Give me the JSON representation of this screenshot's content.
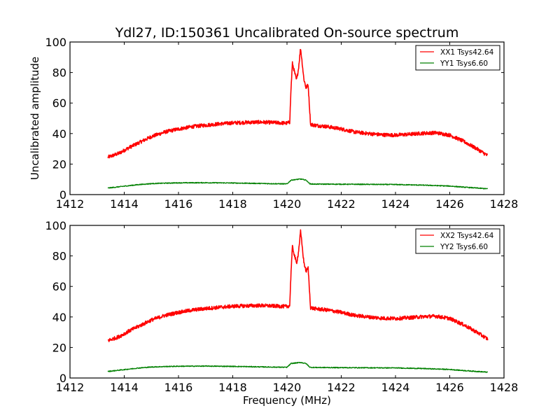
{
  "figure": {
    "title": "Ydl27, ID:150361 Uncalibrated On-source spectrum"
  },
  "chart_data": [
    {
      "type": "line",
      "title": "Ydl27, ID:150361 Uncalibrated On-source spectrum",
      "xlabel": "",
      "ylabel": "Uncalibrated amplitude",
      "xlim": [
        1412,
        1428
      ],
      "ylim": [
        0,
        100
      ],
      "xticks": [
        "1412",
        "1414",
        "1416",
        "1418",
        "1420",
        "1422",
        "1424",
        "1426",
        "1428"
      ],
      "yticks": [
        "0",
        "20",
        "40",
        "60",
        "80",
        "100"
      ],
      "grid": false,
      "legend_position": "top-right",
      "x_range": [
        1413.4,
        1427.4
      ],
      "series": [
        {
          "name": "XX1 Tsys42.64",
          "color": "#ff0000",
          "noise": 1.2,
          "points": [
            [
              1413.4,
              24.5
            ],
            [
              1413.8,
              27
            ],
            [
              1414.2,
              31
            ],
            [
              1414.6,
              34.5
            ],
            [
              1415.0,
              38
            ],
            [
              1415.5,
              41
            ],
            [
              1416.0,
              43
            ],
            [
              1416.5,
              44.5
            ],
            [
              1417.0,
              45.5
            ],
            [
              1417.5,
              46.3
            ],
            [
              1418.0,
              47
            ],
            [
              1418.5,
              47.3
            ],
            [
              1419.0,
              47.5
            ],
            [
              1419.5,
              47.2
            ],
            [
              1420.0,
              46.8
            ],
            [
              1420.1,
              47.5
            ],
            [
              1420.15,
              70
            ],
            [
              1420.2,
              86
            ],
            [
              1420.28,
              80
            ],
            [
              1420.35,
              75
            ],
            [
              1420.42,
              82
            ],
            [
              1420.5,
              96
            ],
            [
              1420.55,
              88
            ],
            [
              1420.62,
              76
            ],
            [
              1420.7,
              70
            ],
            [
              1420.78,
              72
            ],
            [
              1420.82,
              60
            ],
            [
              1420.87,
              46
            ],
            [
              1421.0,
              45.5
            ],
            [
              1421.5,
              44.5
            ],
            [
              1422.0,
              43
            ],
            [
              1422.5,
              41
            ],
            [
              1423.0,
              40
            ],
            [
              1423.5,
              39.2
            ],
            [
              1424.0,
              39
            ],
            [
              1424.5,
              39.5
            ],
            [
              1425.0,
              40.2
            ],
            [
              1425.5,
              40.5
            ],
            [
              1426.0,
              39
            ],
            [
              1426.5,
              35
            ],
            [
              1427.0,
              30
            ],
            [
              1427.4,
              25.5
            ]
          ]
        },
        {
          "name": "YY1 Tsys6.60",
          "color": "#008000",
          "noise": 0.3,
          "points": [
            [
              1413.4,
              4.3
            ],
            [
              1414.0,
              5.5
            ],
            [
              1414.5,
              6.5
            ],
            [
              1415.0,
              7.2
            ],
            [
              1415.5,
              7.5
            ],
            [
              1416.0,
              7.7
            ],
            [
              1417.0,
              7.8
            ],
            [
              1418.0,
              7.6
            ],
            [
              1419.0,
              7.3
            ],
            [
              1420.0,
              7.0
            ],
            [
              1420.15,
              9.5
            ],
            [
              1420.3,
              9.8
            ],
            [
              1420.5,
              10.2
            ],
            [
              1420.7,
              9.5
            ],
            [
              1420.85,
              7.0
            ],
            [
              1421.0,
              6.9
            ],
            [
              1422.0,
              6.8
            ],
            [
              1423.0,
              6.7
            ],
            [
              1424.0,
              6.6
            ],
            [
              1425.0,
              6.2
            ],
            [
              1426.0,
              5.6
            ],
            [
              1426.5,
              4.9
            ],
            [
              1427.0,
              4.3
            ],
            [
              1427.4,
              3.8
            ]
          ]
        }
      ]
    },
    {
      "type": "line",
      "title": "",
      "xlabel": "Frequency (MHz)",
      "ylabel": "",
      "xlim": [
        1412,
        1428
      ],
      "ylim": [
        0,
        100
      ],
      "xticks": [
        "1412",
        "1414",
        "1416",
        "1418",
        "1420",
        "1422",
        "1424",
        "1426",
        "1428"
      ],
      "yticks": [
        "0",
        "20",
        "40",
        "60",
        "80",
        "100"
      ],
      "grid": false,
      "legend_position": "top-right",
      "x_range": [
        1413.4,
        1427.4
      ],
      "series": [
        {
          "name": "XX2 Tsys42.64",
          "color": "#ff0000",
          "noise": 1.2,
          "points": [
            [
              1413.4,
              24.5
            ],
            [
              1413.8,
              27
            ],
            [
              1414.2,
              31
            ],
            [
              1414.6,
              34.5
            ],
            [
              1415.0,
              38
            ],
            [
              1415.5,
              41
            ],
            [
              1416.0,
              43
            ],
            [
              1416.5,
              44.5
            ],
            [
              1417.0,
              45.5
            ],
            [
              1417.5,
              46.3
            ],
            [
              1418.0,
              47
            ],
            [
              1418.5,
              47.3
            ],
            [
              1419.0,
              47.5
            ],
            [
              1419.5,
              47.2
            ],
            [
              1420.0,
              46.8
            ],
            [
              1420.1,
              47.5
            ],
            [
              1420.15,
              70
            ],
            [
              1420.2,
              86
            ],
            [
              1420.28,
              80
            ],
            [
              1420.35,
              75
            ],
            [
              1420.42,
              82
            ],
            [
              1420.5,
              96
            ],
            [
              1420.55,
              88
            ],
            [
              1420.62,
              76
            ],
            [
              1420.7,
              70
            ],
            [
              1420.78,
              72
            ],
            [
              1420.82,
              60
            ],
            [
              1420.87,
              46
            ],
            [
              1421.0,
              45.5
            ],
            [
              1421.5,
              44.5
            ],
            [
              1422.0,
              43
            ],
            [
              1422.5,
              41
            ],
            [
              1423.0,
              40
            ],
            [
              1423.5,
              39.2
            ],
            [
              1424.0,
              39
            ],
            [
              1424.5,
              39.5
            ],
            [
              1425.0,
              40.2
            ],
            [
              1425.5,
              40.5
            ],
            [
              1426.0,
              39
            ],
            [
              1426.5,
              35
            ],
            [
              1427.0,
              30
            ],
            [
              1427.4,
              25.5
            ]
          ]
        },
        {
          "name": "YY2 Tsys6.60",
          "color": "#008000",
          "noise": 0.3,
          "points": [
            [
              1413.4,
              4.3
            ],
            [
              1414.0,
              5.5
            ],
            [
              1414.5,
              6.5
            ],
            [
              1415.0,
              7.2
            ],
            [
              1415.5,
              7.5
            ],
            [
              1416.0,
              7.7
            ],
            [
              1417.0,
              7.8
            ],
            [
              1418.0,
              7.6
            ],
            [
              1419.0,
              7.3
            ],
            [
              1420.0,
              7.0
            ],
            [
              1420.15,
              9.5
            ],
            [
              1420.3,
              9.8
            ],
            [
              1420.5,
              10.2
            ],
            [
              1420.7,
              9.5
            ],
            [
              1420.85,
              7.0
            ],
            [
              1421.0,
              6.9
            ],
            [
              1422.0,
              6.8
            ],
            [
              1423.0,
              6.7
            ],
            [
              1424.0,
              6.6
            ],
            [
              1425.0,
              6.2
            ],
            [
              1426.0,
              5.6
            ],
            [
              1426.5,
              4.9
            ],
            [
              1427.0,
              4.3
            ],
            [
              1427.4,
              3.8
            ]
          ]
        }
      ]
    }
  ]
}
